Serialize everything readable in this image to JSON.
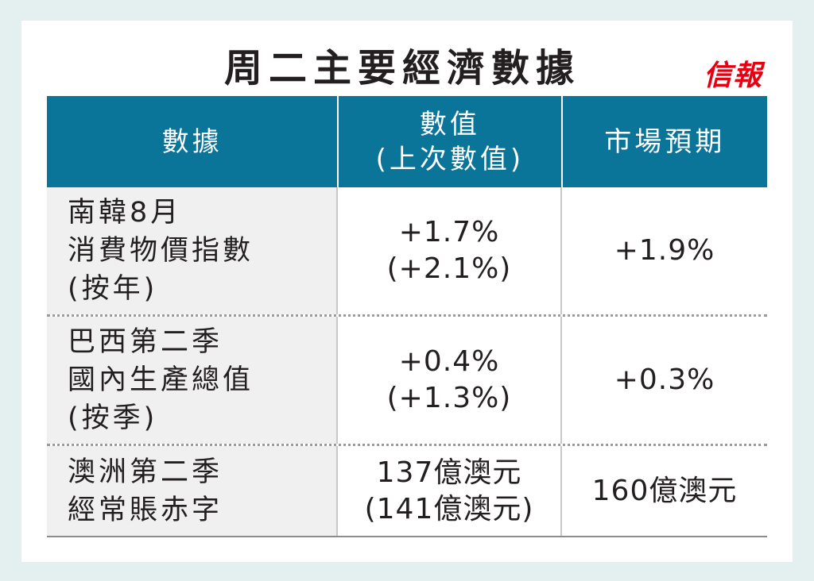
{
  "title": "周二主要經濟數據",
  "brand": "信報",
  "colors": {
    "header_bg": "#0b7499",
    "header_text": "#ffffff",
    "brand": "#e60012",
    "first_col_bg": "#f0f0f0",
    "outer_bg": "#e4efef"
  },
  "header": {
    "col1": "數據",
    "col2_line1": "數值",
    "col2_line2": "(上次數值)",
    "col3": "市場預期"
  },
  "rows": [
    {
      "indicator": [
        "南韓8月",
        "消費物價指數",
        "(按年)"
      ],
      "value": "+1.7%",
      "previous": "(+2.1%)",
      "expected": "+1.9%"
    },
    {
      "indicator": [
        "巴西第二季",
        "國內生產總值",
        "(按季)"
      ],
      "value": "+0.4%",
      "previous": "(+1.3%)",
      "expected": "+0.3%"
    },
    {
      "indicator": [
        "澳洲第二季",
        "經常賬赤字"
      ],
      "value": "137億澳元",
      "previous": "(141億澳元)",
      "expected": "160億澳元"
    }
  ]
}
